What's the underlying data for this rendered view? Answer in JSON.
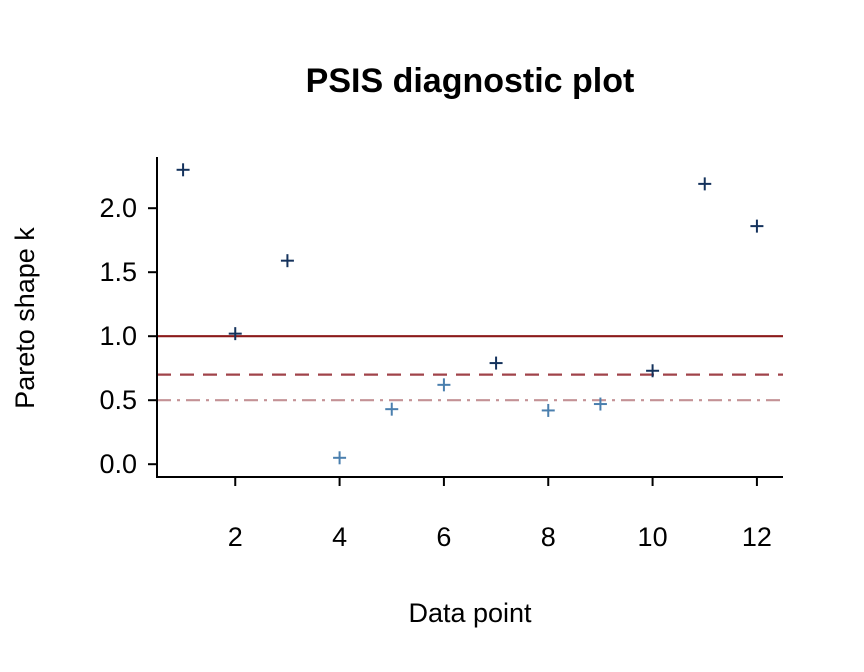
{
  "chart_data": {
    "type": "scatter",
    "title": "PSIS diagnostic plot",
    "xlabel": "Data point",
    "ylabel": "Pareto shape k",
    "xlim": [
      0.5,
      12.5
    ],
    "ylim": [
      -0.1,
      2.4
    ],
    "x_ticks": [
      2,
      4,
      6,
      8,
      10,
      12
    ],
    "y_ticks": [
      "0.0",
      "0.5",
      "1.0",
      "1.5",
      "2.0"
    ],
    "marker": "+",
    "grid": false,
    "points": [
      {
        "x": 1,
        "y": 2.3
      },
      {
        "x": 2,
        "y": 1.02
      },
      {
        "x": 3,
        "y": 1.59
      },
      {
        "x": 4,
        "y": 0.05
      },
      {
        "x": 5,
        "y": 0.43
      },
      {
        "x": 6,
        "y": 0.62
      },
      {
        "x": 7,
        "y": 0.79
      },
      {
        "x": 8,
        "y": 0.42
      },
      {
        "x": 9,
        "y": 0.47
      },
      {
        "x": 10,
        "y": 0.73
      },
      {
        "x": 11,
        "y": 2.19
      },
      {
        "x": 12,
        "y": 1.86
      }
    ],
    "reference_lines": [
      {
        "y": 1.0,
        "style": "solid",
        "color": "#8b1a1a"
      },
      {
        "y": 0.7,
        "style": "dashed",
        "color": "#a0434a"
      },
      {
        "y": 0.5,
        "style": "dashdot",
        "color": "#c49296"
      }
    ],
    "colors": {
      "high_k": "#14325c",
      "low_k": "#4a7fae"
    }
  }
}
